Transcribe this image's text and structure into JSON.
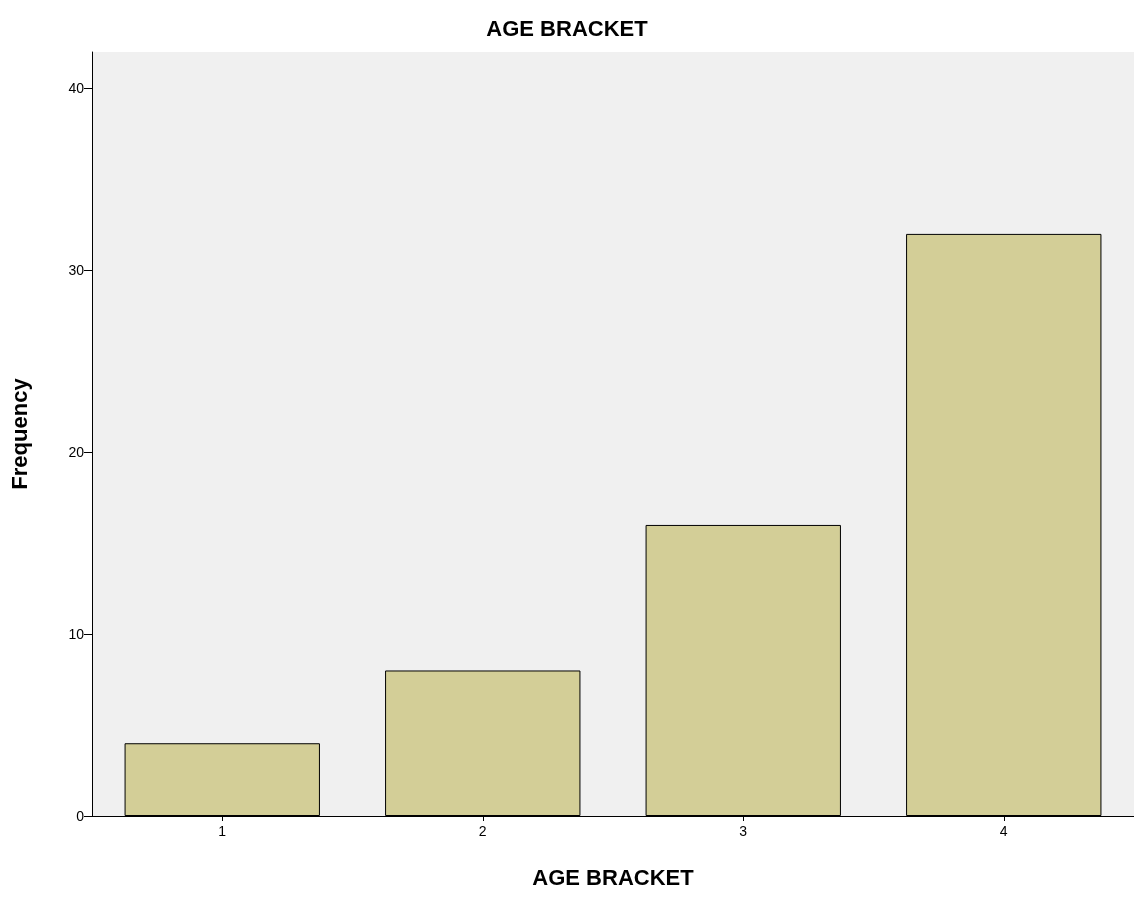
{
  "chart_data": {
    "type": "bar",
    "title": "AGE BRACKET",
    "xlabel": "AGE BRACKET",
    "ylabel": "Frequency",
    "categories": [
      "1",
      "2",
      "3",
      "4"
    ],
    "values": [
      4,
      8,
      16,
      32
    ],
    "color": "#d3ce97",
    "ylim": [
      0,
      42
    ],
    "yticks": [
      0,
      10,
      20,
      30,
      40
    ],
    "grid": false
  }
}
